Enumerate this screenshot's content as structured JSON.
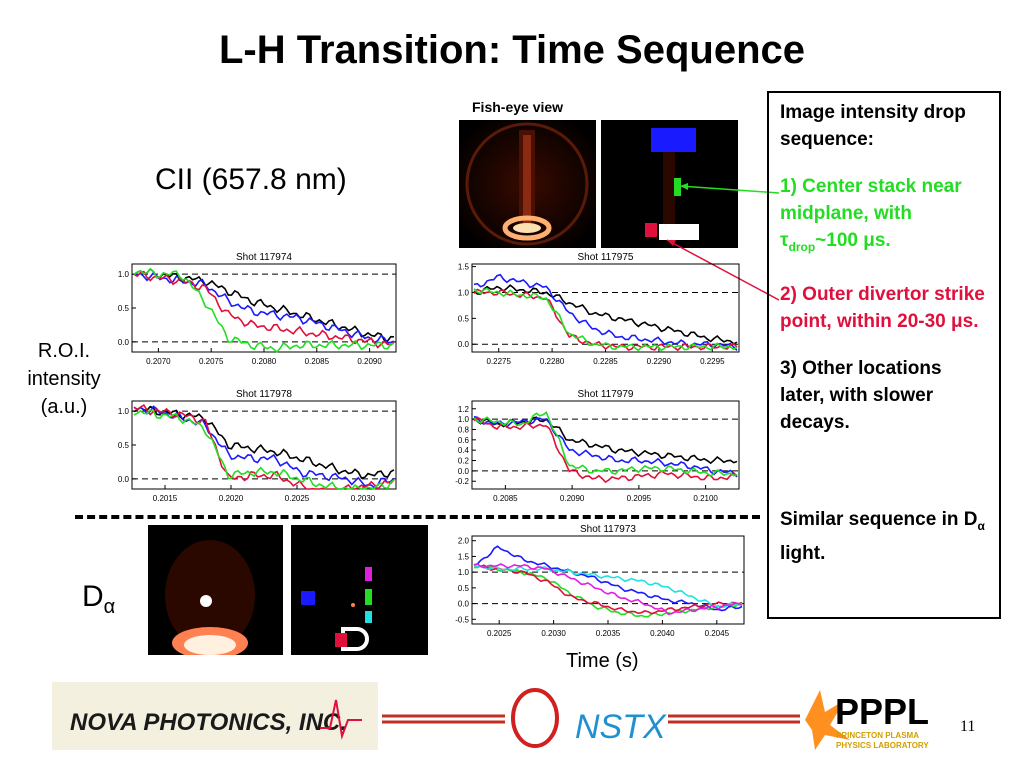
{
  "slide": {
    "title": "L-H Transition: Time Sequence",
    "page_number": "11",
    "cii_label": "CII (657.8 nm)",
    "roi_label": [
      "R.O.I.",
      "intensity",
      "(a.u.)"
    ],
    "dalpha_label": "D",
    "dalpha_sub": "α",
    "fisheye_label": "Fish-eye view",
    "time_label": "Time (s)"
  },
  "sidebar": {
    "heading": "Image intensity drop sequence:",
    "item1_a": "1) Center stack near midplane, with ",
    "item1_tau": "τ",
    "item1_sub": "drop",
    "item1_b": "~100 μs.",
    "item2": "2) Outer divertor strike point, within 20-30 μs.",
    "item3": "3) Other locations later, with slower decays.",
    "item4_a": "Similar sequence in D",
    "item4_sub": "α",
    "item4_b": " light."
  },
  "colors": {
    "green": "#22dd22",
    "red": "#e0103c",
    "blue": "#1a1aff",
    "cyan": "#22e0e0",
    "magenta": "#e020e0"
  },
  "logos": {
    "nova": "NOVA PHOTONICS, INC.",
    "nstx": "NSTX",
    "pppl": "PPPL",
    "pppl_sub1": "PRINCETON PLASMA",
    "pppl_sub2": "PHYSICS LABORATORY"
  },
  "chart_data": [
    {
      "type": "line",
      "title": "Shot 117974",
      "x_ticks": [
        "0.2070",
        "0.2075",
        "0.2080",
        "0.2085",
        "0.2090"
      ],
      "y_ticks": [
        "1.0",
        "0.5",
        "0.0"
      ],
      "series": [
        {
          "color": "black",
          "values": [
            1.05,
            1.0,
            0.95,
            0.9,
            0.75,
            0.6,
            0.5,
            0.4,
            0.3,
            0.2,
            0.1,
            0.05
          ]
        },
        {
          "color": "blue",
          "values": [
            1.0,
            0.95,
            0.9,
            0.85,
            0.6,
            0.45,
            0.4,
            0.35,
            0.25,
            0.15,
            0.05,
            0.0
          ]
        },
        {
          "color": "red",
          "values": [
            1.0,
            0.95,
            0.9,
            0.8,
            0.4,
            0.25,
            0.2,
            0.15,
            0.1,
            0.05,
            0.0,
            -0.05
          ]
        },
        {
          "color": "green",
          "values": [
            1.05,
            1.0,
            1.0,
            0.6,
            0.05,
            -0.05,
            -0.1,
            -0.05,
            -0.05,
            -0.05,
            -0.05,
            -0.05
          ]
        }
      ]
    },
    {
      "type": "line",
      "title": "Shot 117975",
      "x_ticks": [
        "0.2275",
        "0.2280",
        "0.2285",
        "0.2290",
        "0.2295"
      ],
      "y_ticks": [
        "1.5",
        "1.0",
        "0.5",
        "0.0"
      ],
      "series": [
        {
          "color": "black",
          "values": [
            1.0,
            1.1,
            1.05,
            1.0,
            0.8,
            0.6,
            0.5,
            0.4,
            0.3,
            0.2,
            0.1,
            0.05
          ]
        },
        {
          "color": "blue",
          "values": [
            1.1,
            1.3,
            1.2,
            1.1,
            0.6,
            0.3,
            0.15,
            0.1,
            0.05,
            0.0,
            0.0,
            -0.05
          ]
        },
        {
          "color": "red",
          "values": [
            1.0,
            1.0,
            0.95,
            0.9,
            0.15,
            0.0,
            -0.05,
            -0.05,
            -0.05,
            -0.05,
            -0.05,
            -0.05
          ]
        },
        {
          "color": "green",
          "values": [
            1.05,
            1.0,
            0.95,
            0.9,
            0.2,
            0.0,
            -0.05,
            -0.05,
            -0.05,
            -0.05,
            -0.05,
            -0.05
          ]
        }
      ]
    },
    {
      "type": "line",
      "title": "Shot 117978",
      "x_ticks": [
        "0.2015",
        "0.2020",
        "0.2025",
        "0.2030"
      ],
      "y_ticks": [
        "1.0",
        "0.5",
        "0.0"
      ],
      "series": [
        {
          "color": "black",
          "values": [
            1.05,
            1.0,
            0.95,
            0.9,
            0.5,
            0.45,
            0.4,
            0.3,
            0.2,
            0.1,
            0.05,
            0.1
          ]
        },
        {
          "color": "blue",
          "values": [
            1.05,
            1.0,
            0.9,
            0.8,
            0.35,
            0.3,
            0.3,
            0.1,
            0.05,
            0.0,
            -0.1,
            0.0
          ]
        },
        {
          "color": "red",
          "values": [
            1.05,
            1.0,
            0.95,
            0.85,
            0.0,
            0.05,
            0.05,
            -0.1,
            -0.2,
            -0.15,
            -0.1,
            -0.05
          ]
        },
        {
          "color": "green",
          "values": [
            1.0,
            0.95,
            0.9,
            0.75,
            0.05,
            0.1,
            0.1,
            0.0,
            -0.1,
            -0.15,
            -0.15,
            -0.05
          ]
        }
      ]
    },
    {
      "type": "line",
      "title": "Shot 117979",
      "x_ticks": [
        "0.2085",
        "0.2090",
        "0.2095",
        "0.2100"
      ],
      "y_ticks": [
        "1.2",
        "1.0",
        "0.8",
        "0.6",
        "0.4",
        "0.2",
        "0.0",
        "-0.2"
      ],
      "series": [
        {
          "color": "black",
          "values": [
            1.0,
            0.9,
            0.95,
            1.0,
            0.6,
            0.5,
            0.4,
            0.35,
            0.3,
            0.25,
            0.2,
            0.2
          ]
        },
        {
          "color": "blue",
          "values": [
            1.0,
            0.9,
            0.95,
            1.0,
            0.4,
            0.3,
            0.2,
            0.2,
            0.15,
            0.1,
            0.0,
            -0.05
          ]
        },
        {
          "color": "red",
          "values": [
            1.0,
            0.85,
            0.85,
            0.9,
            0.0,
            -0.15,
            -0.15,
            -0.1,
            -0.05,
            -0.1,
            -0.15,
            -0.1
          ]
        },
        {
          "color": "green",
          "values": [
            1.0,
            0.95,
            0.9,
            1.15,
            0.1,
            0.0,
            0.0,
            0.05,
            0.05,
            0.0,
            -0.05,
            -0.05
          ]
        }
      ]
    },
    {
      "type": "line",
      "title": "Shot 117973",
      "x_ticks": [
        "0.2025",
        "0.2030",
        "0.2035",
        "0.2040",
        "0.2045"
      ],
      "y_ticks": [
        "2.0",
        "1.5",
        "1.0",
        "0.5",
        "0.0",
        "-0.5"
      ],
      "series": [
        {
          "color": "blue",
          "values": [
            1.2,
            1.8,
            1.4,
            1.2,
            1.0,
            0.8,
            0.5,
            0.3,
            0.1,
            0.0,
            -0.2,
            -0.1
          ]
        },
        {
          "color": "green",
          "values": [
            1.2,
            1.1,
            1.0,
            0.8,
            0.3,
            -0.1,
            -0.3,
            -0.4,
            -0.3,
            -0.2,
            -0.1,
            0.0
          ]
        },
        {
          "color": "red",
          "values": [
            1.2,
            1.1,
            1.0,
            0.7,
            0.2,
            0.0,
            -0.2,
            -0.3,
            -0.2,
            -0.1,
            0.0,
            0.0
          ]
        },
        {
          "color": "cyan",
          "values": [
            1.2,
            1.1,
            1.1,
            1.1,
            1.0,
            0.9,
            0.8,
            0.7,
            0.5,
            0.2,
            -0.1,
            0.0
          ]
        },
        {
          "color": "magenta",
          "values": [
            1.2,
            1.2,
            1.2,
            1.1,
            0.8,
            0.5,
            0.2,
            0.0,
            -0.3,
            -0.2,
            -0.1,
            0.0
          ]
        }
      ]
    }
  ]
}
